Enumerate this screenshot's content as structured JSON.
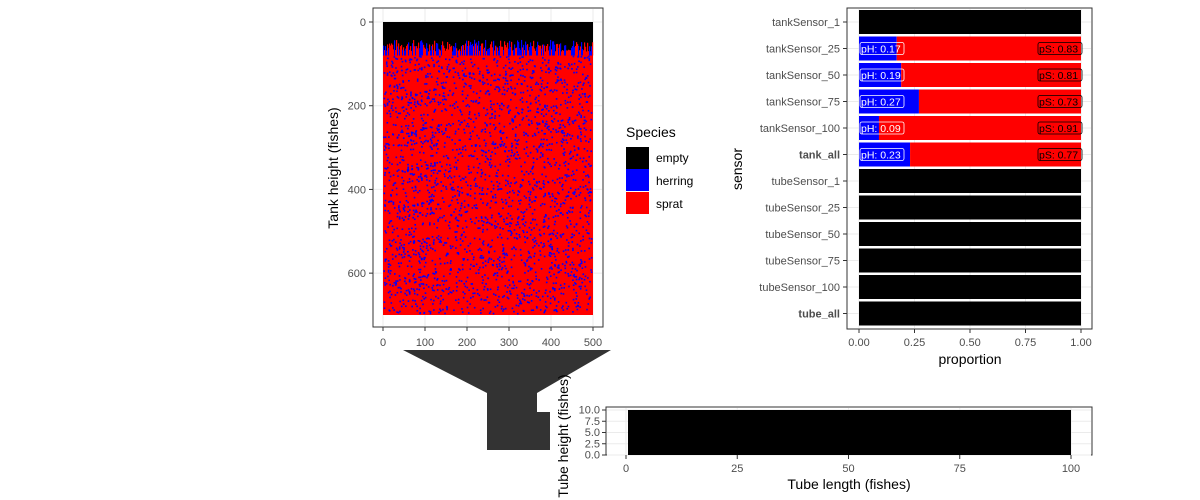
{
  "colors": {
    "empty": "#000000",
    "herring": "#0000FF",
    "sprat": "#FF0000",
    "funnel": "#333333"
  },
  "chart_data": [
    {
      "type": "heatmap",
      "ylabel": "Tank height (fishes)",
      "xlabel": "",
      "xlim": [
        0,
        500
      ],
      "ylim": [
        700,
        0
      ],
      "x_ticks": [
        "0",
        "100",
        "200",
        "300",
        "400",
        "500"
      ],
      "y_ticks": [
        "0",
        "200",
        "400",
        "600"
      ],
      "empty_band_to": 80,
      "herring_share": 0.23,
      "grid": true
    },
    {
      "type": "bar",
      "orientation": "horizontal",
      "stacked": true,
      "xlabel": "proportion",
      "ylabel": "sensor",
      "xlim": [
        0,
        1
      ],
      "x_ticks": [
        "0.00",
        "0.25",
        "0.50",
        "0.75",
        "1.00"
      ],
      "categories": [
        "tankSensor_1",
        "tankSensor_25",
        "tankSensor_50",
        "tankSensor_75",
        "tankSensor_100",
        "tank_all",
        "tubeSensor_1",
        "tubeSensor_25",
        "tubeSensor_50",
        "tubeSensor_75",
        "tubeSensor_100",
        "tube_all"
      ],
      "bold_categories": [
        "tank_all",
        "tube_all"
      ],
      "series": [
        {
          "name": "herring",
          "values": [
            0,
            0.17,
            0.19,
            0.27,
            0.09,
            0.23,
            0,
            0,
            0,
            0,
            0,
            0
          ]
        },
        {
          "name": "sprat",
          "values": [
            0,
            0.83,
            0.81,
            0.73,
            0.91,
            0.77,
            0,
            0,
            0,
            0,
            0,
            0
          ]
        },
        {
          "name": "empty",
          "values": [
            1,
            0,
            0,
            0,
            0,
            0,
            1,
            1,
            1,
            1,
            1,
            1
          ]
        }
      ],
      "herring_labels": [
        "",
        "pH: 0.17",
        "pH: 0.19",
        "pH: 0.27",
        "pH: 0.09",
        "pH: 0.23",
        "",
        "",
        "",
        "",
        "",
        ""
      ],
      "sprat_labels": [
        "",
        "pS: 0.83",
        "pS: 0.81",
        "pS: 0.73",
        "pS: 0.91",
        "pS: 0.77",
        "",
        "",
        "",
        "",
        "",
        ""
      ],
      "grid": true
    },
    {
      "type": "heatmap",
      "xlabel": "Tube length (fishes)",
      "ylabel": "Tube height (fishes)",
      "xlim": [
        0,
        100
      ],
      "ylim": [
        0,
        10
      ],
      "x_ticks": [
        "0",
        "25",
        "50",
        "75",
        "100"
      ],
      "y_ticks": [
        "0.0",
        "2.5",
        "5.0",
        "7.5",
        "10.0"
      ],
      "fill": "empty",
      "grid": true
    }
  ],
  "legend": {
    "title": "Species",
    "items": [
      {
        "name": "empty",
        "label": "empty"
      },
      {
        "name": "herring",
        "label": "herring"
      },
      {
        "name": "sprat",
        "label": "sprat"
      }
    ]
  }
}
